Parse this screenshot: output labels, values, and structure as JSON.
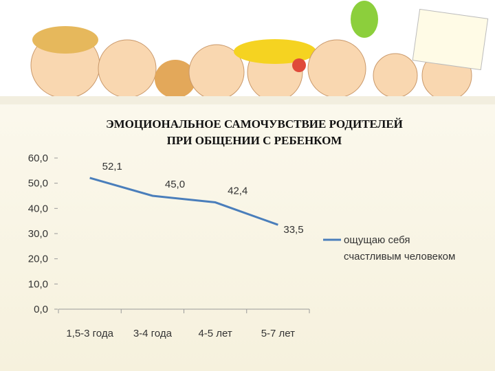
{
  "chart_data": {
    "type": "line",
    "title": "ЭМОЦИОНАЛЬНОЕ САМОЧУВСТВИЕ  РОДИТЕЛЕЙ",
    "subtitle": "ПРИ ОБЩЕНИИ С РЕБЕНКОМ",
    "categories": [
      "1,5-3 года",
      "3-4 года",
      "4-5 лет",
      "5-7 лет"
    ],
    "series": [
      {
        "name": "ощущаю себя счастливым человеком",
        "color": "#4a7ebb",
        "values": [
          52.1,
          45.0,
          42.4,
          33.5
        ],
        "value_labels": [
          "52,1",
          "45,0",
          "42,4",
          "33,5"
        ]
      }
    ],
    "ylim": [
      0,
      60
    ],
    "yticks": [
      {
        "value": 0,
        "label": "0,0"
      },
      {
        "value": 10,
        "label": "10,0"
      },
      {
        "value": 20,
        "label": "20,0"
      },
      {
        "value": 30,
        "label": "30,0"
      },
      {
        "value": 40,
        "label": "40,0"
      },
      {
        "value": 50,
        "label": "50,0"
      },
      {
        "value": 60,
        "label": "60,0"
      }
    ],
    "legend": "right",
    "grid": false
  }
}
